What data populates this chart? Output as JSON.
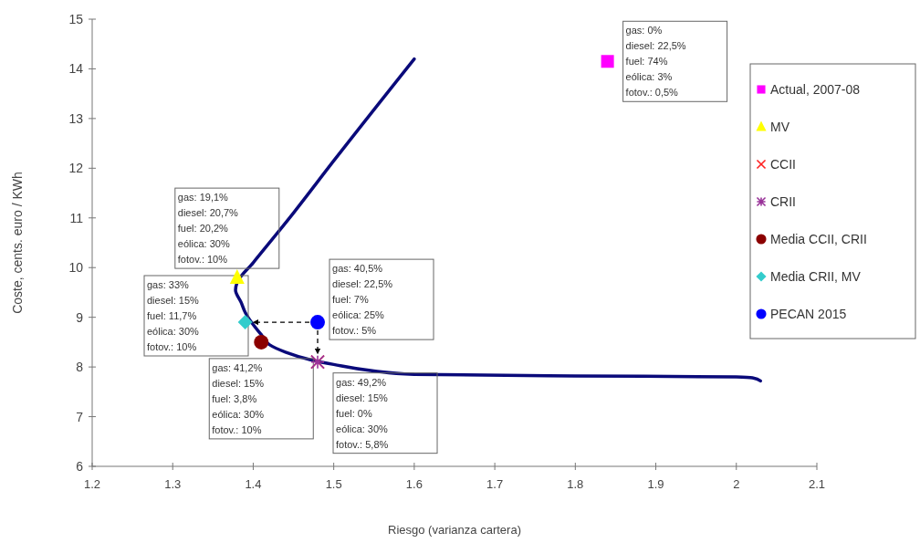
{
  "chart_data": {
    "type": "scatter",
    "xlabel": "Riesgo (varianza cartera)",
    "ylabel": "Coste, cents. euro / KWh",
    "xlim": [
      1.2,
      2.1
    ],
    "xticks": [
      1.2,
      1.3,
      1.4,
      1.5,
      1.6,
      1.7,
      1.8,
      1.9,
      2,
      2.1
    ],
    "ylim": [
      6,
      15
    ],
    "yticks": [
      6,
      7,
      8,
      9,
      10,
      11,
      12,
      13,
      14,
      15
    ],
    "grid": false,
    "legend": "right",
    "series": [
      {
        "type": "line",
        "color": "#0a0a7a",
        "marker": "none",
        "line_style": "solid",
        "x": [
          1.6,
          1.5,
          1.45,
          1.4,
          1.38,
          1.378,
          1.385,
          1.39,
          1.4,
          1.41,
          1.42,
          1.44,
          1.47,
          1.5,
          1.55,
          1.6,
          1.8,
          2.0,
          2.02,
          2.03
        ],
        "values": [
          14.2,
          12.15,
          11.1,
          10.1,
          9.7,
          9.55,
          9.3,
          9.1,
          8.85,
          8.65,
          8.45,
          8.3,
          8.15,
          8.05,
          7.92,
          7.85,
          7.82,
          7.8,
          7.78,
          7.72
        ]
      },
      {
        "name": "Actual, 2007-08",
        "color": "#ff00ff",
        "marker": "square",
        "x": [
          1.84
        ],
        "values": [
          14.15
        ]
      },
      {
        "name": "MV",
        "color": "#ffff00",
        "marker": "triangle",
        "x": [
          1.38
        ],
        "values": [
          9.8
        ]
      },
      {
        "name": "CCII",
        "color": "#ff2020",
        "marker": "cross",
        "x": [
          1.48
        ],
        "values": [
          8.1
        ]
      },
      {
        "name": "CRII",
        "color": "#993399",
        "x": [
          1.48
        ],
        "values": [
          8.1
        ]
      },
      {
        "name": "Media CCII, CRII",
        "color": "#8b0000",
        "marker": "circle",
        "x": [
          1.41
        ],
        "values": [
          8.5
        ]
      },
      {
        "name": "Media CRII, MV",
        "color": "#33cccc",
        "marker": "diamond",
        "x": [
          1.39
        ],
        "values": [
          8.9
        ]
      },
      {
        "name": "PECAN 2015",
        "color": "#0000ff",
        "marker": "circle",
        "x": [
          1.48
        ],
        "values": [
          8.9
        ]
      }
    ],
    "annotations": [
      {
        "text": "gas: 0%\ndiesel: 22,5%\nfuel: 74%\neólica: 3%\nfotov.: 0,5%",
        "x": 1.84,
        "y": 14.15
      },
      {
        "text": "gas: 19,1%\ndiesel: 20,7%\nfuel: 20,2%\neólica: 30%\nfotov.: 10%",
        "x": 1.38,
        "y": 9.8
      },
      "gas: 33%\ndiesel: 15%\nfuel: 11,7%\neólica: 30%\nfotov.: 10%",
      {
        "text": "gas: 41,2%\ndiesel: 15%\nfuel: 3,8%\neólica: 30%\nfotov.: 10%",
        "x": 1.41,
        "y": 8.5
      },
      {
        "text": "gas: 40,5%\ndiesel: 22,5%\nfuel: 7%\neólica: 25%\nfotov.: 5%",
        "x": 1.48,
        "y": 8.9
      },
      {
        "text": "gas: 49,2%\ndiesel: 15%\nfuel: 0%\neólica: 30%\nfotov.: 5,8%",
        "x": 1.48,
        "y": 8.1
      }
    ]
  }
}
